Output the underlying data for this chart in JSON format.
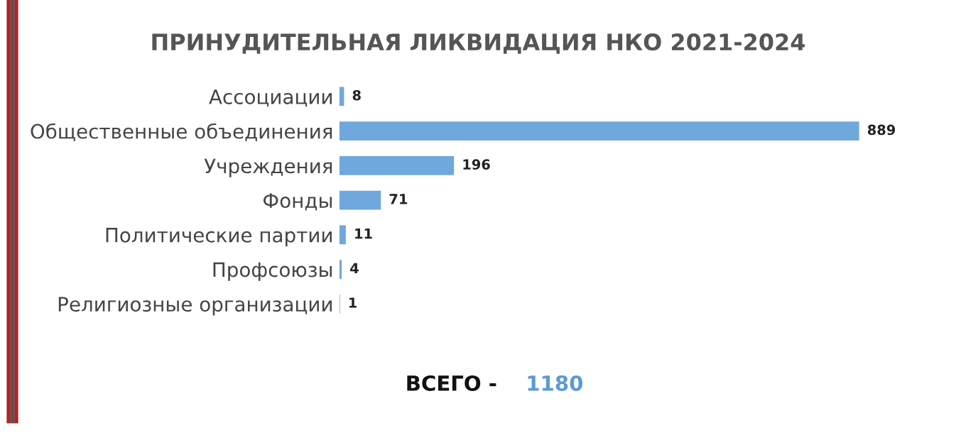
{
  "chart_data": {
    "type": "bar",
    "orientation": "horizontal",
    "title": "ПРИНУДИТЕЛЬНАЯ ЛИКВИДАЦИЯ НКО 2021-2024",
    "categories": [
      "Ассоциации",
      "Общественные объединения",
      "Учреждения",
      "Фонды",
      "Политические партии",
      "Профсоюзы",
      "Религиозные организации"
    ],
    "values": [
      8,
      889,
      196,
      71,
      11,
      4,
      1
    ],
    "color": "#6fa8dc",
    "data_labels": true,
    "tick_labels": "y",
    "grid": false,
    "annotations": [
      "ВСЕГО -",
      "1180"
    ]
  }
}
